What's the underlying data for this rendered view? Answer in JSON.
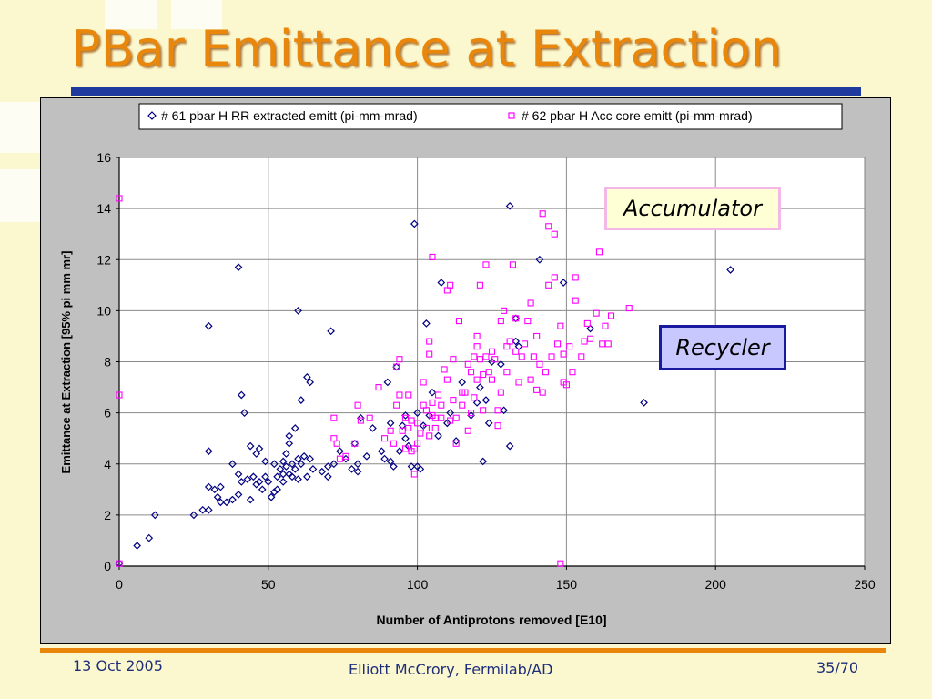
{
  "slide": {
    "title": "PBar Emittance at Extraction",
    "footer_date": "13 Oct 2005",
    "footer_author": "Elliott McCrory, Fermilab/AD",
    "footer_page": "35/70",
    "title_color": "#e8870c",
    "accent_color": "#1f3a9e"
  },
  "callouts": {
    "accumulator": "Accumulator",
    "recycler": "Recycler"
  },
  "chart_data": {
    "type": "scatter",
    "title": "",
    "xlabel": "Number of Antiprotons removed [E10]",
    "ylabel": "Emittance at Extraction [95% pi mm mr]",
    "xlim": [
      0,
      250
    ],
    "ylim": [
      0,
      16
    ],
    "xticks": [
      0,
      50,
      100,
      150,
      200,
      250
    ],
    "yticks": [
      0,
      2,
      4,
      6,
      8,
      10,
      12,
      14,
      16
    ],
    "grid": true,
    "legend_position": "top",
    "series": [
      {
        "name": "# 61 pbar H RR extracted emitt (pi-mm-mrad)",
        "marker": "diamond",
        "color": "#000080",
        "points": [
          [
            0,
            0.1
          ],
          [
            6,
            0.8
          ],
          [
            10,
            1.1
          ],
          [
            12,
            2
          ],
          [
            25,
            2
          ],
          [
            28,
            2.2
          ],
          [
            30,
            2.2
          ],
          [
            30,
            3.1
          ],
          [
            30,
            4.5
          ],
          [
            30,
            9.4
          ],
          [
            32,
            3
          ],
          [
            33,
            2.7
          ],
          [
            34,
            2.5
          ],
          [
            34,
            3.1
          ],
          [
            36,
            2.5
          ],
          [
            38,
            2.6
          ],
          [
            38,
            4
          ],
          [
            40,
            2.8
          ],
          [
            40,
            3.6
          ],
          [
            41,
            3.3
          ],
          [
            41,
            6.7
          ],
          [
            40,
            11.7
          ],
          [
            42,
            6
          ],
          [
            43,
            3.4
          ],
          [
            44,
            2.6
          ],
          [
            44,
            4.7
          ],
          [
            45,
            3.5
          ],
          [
            46,
            3.2
          ],
          [
            46,
            4.4
          ],
          [
            47,
            4.6
          ],
          [
            47,
            3.3
          ],
          [
            48,
            3
          ],
          [
            49,
            3.5
          ],
          [
            49,
            4.1
          ],
          [
            50,
            3.3
          ],
          [
            51,
            2.7
          ],
          [
            52,
            2.9
          ],
          [
            52,
            4
          ],
          [
            53,
            3
          ],
          [
            53,
            3.5
          ],
          [
            54,
            3.8
          ],
          [
            55,
            3.3
          ],
          [
            55,
            3.6
          ],
          [
            55,
            4.1
          ],
          [
            56,
            3.9
          ],
          [
            56,
            4.4
          ],
          [
            57,
            3.6
          ],
          [
            57,
            4.8
          ],
          [
            57,
            5.1
          ],
          [
            58,
            4
          ],
          [
            58,
            3.5
          ],
          [
            59,
            3.8
          ],
          [
            59,
            5.4
          ],
          [
            60,
            3.4
          ],
          [
            60,
            4.2
          ],
          [
            60,
            10
          ],
          [
            61,
            4
          ],
          [
            61,
            6.5
          ],
          [
            62,
            4.3
          ],
          [
            63,
            3.5
          ],
          [
            63,
            7.4
          ],
          [
            64,
            4.2
          ],
          [
            64,
            7.2
          ],
          [
            65,
            3.8
          ],
          [
            68,
            3.7
          ],
          [
            70,
            3.5
          ],
          [
            70,
            3.9
          ],
          [
            71,
            9.2
          ],
          [
            72,
            4
          ],
          [
            74,
            4.5
          ],
          [
            76,
            4.2
          ],
          [
            78,
            3.8
          ],
          [
            79,
            4.8
          ],
          [
            80,
            3.7
          ],
          [
            80,
            4
          ],
          [
            81,
            5.8
          ],
          [
            83,
            4.3
          ],
          [
            85,
            5.4
          ],
          [
            88,
            4.5
          ],
          [
            89,
            4.2
          ],
          [
            90,
            7.2
          ],
          [
            91,
            4.1
          ],
          [
            91,
            5.6
          ],
          [
            92,
            3.9
          ],
          [
            93,
            7.8
          ],
          [
            94,
            4.5
          ],
          [
            95,
            5.5
          ],
          [
            96,
            5
          ],
          [
            96,
            5.9
          ],
          [
            97,
            4.7
          ],
          [
            98,
            3.9
          ],
          [
            99,
            13.4
          ],
          [
            100,
            3.9
          ],
          [
            100,
            6
          ],
          [
            101,
            3.8
          ],
          [
            102,
            5.5
          ],
          [
            103,
            9.5
          ],
          [
            104,
            5.9
          ],
          [
            105,
            6.8
          ],
          [
            107,
            5.1
          ],
          [
            108,
            11.1
          ],
          [
            110,
            5.6
          ],
          [
            111,
            6
          ],
          [
            113,
            4.9
          ],
          [
            115,
            7.2
          ],
          [
            118,
            5.9
          ],
          [
            120,
            6.4
          ],
          [
            121,
            7
          ],
          [
            122,
            4.1
          ],
          [
            123,
            6.5
          ],
          [
            124,
            5.6
          ],
          [
            125,
            8
          ],
          [
            128,
            7.9
          ],
          [
            129,
            6.1
          ],
          [
            131,
            4.7
          ],
          [
            131,
            14.1
          ],
          [
            133,
            8.8
          ],
          [
            133,
            9.7
          ],
          [
            134,
            8.6
          ],
          [
            141,
            12
          ],
          [
            149,
            11.1
          ],
          [
            158,
            9.3
          ],
          [
            176,
            6.4
          ],
          [
            205,
            11.6
          ]
        ]
      },
      {
        "name": "# 62 pbar H Acc core emitt (pi-mm-mrad)",
        "marker": "square",
        "color": "#ff00ff",
        "points": [
          [
            0,
            14.4
          ],
          [
            0,
            6.7
          ],
          [
            0,
            0.1
          ],
          [
            72,
            5.8
          ],
          [
            72,
            5
          ],
          [
            73,
            4.8
          ],
          [
            74,
            4.2
          ],
          [
            76,
            4.3
          ],
          [
            79,
            4.8
          ],
          [
            80,
            6.3
          ],
          [
            81,
            5.7
          ],
          [
            84,
            5.8
          ],
          [
            87,
            7
          ],
          [
            89,
            5
          ],
          [
            91,
            5.3
          ],
          [
            92,
            4.8
          ],
          [
            93,
            6.3
          ],
          [
            93,
            7.8
          ],
          [
            94,
            8.1
          ],
          [
            94,
            6.7
          ],
          [
            95,
            5.3
          ],
          [
            96,
            5.8
          ],
          [
            96,
            4.6
          ],
          [
            97,
            5.4
          ],
          [
            97,
            6.7
          ],
          [
            98,
            4.5
          ],
          [
            98,
            5.7
          ],
          [
            99,
            3.6
          ],
          [
            99,
            4.6
          ],
          [
            100,
            4.8
          ],
          [
            100,
            5.6
          ],
          [
            101,
            5.2
          ],
          [
            102,
            6.3
          ],
          [
            102,
            7.2
          ],
          [
            103,
            5.4
          ],
          [
            103,
            6.1
          ],
          [
            104,
            5.1
          ],
          [
            104,
            8.3
          ],
          [
            104,
            8.8
          ],
          [
            105,
            5.9
          ],
          [
            105,
            6.4
          ],
          [
            105,
            12.1
          ],
          [
            106,
            5.4
          ],
          [
            106,
            5.8
          ],
          [
            107,
            6.7
          ],
          [
            108,
            6.3
          ],
          [
            108,
            5.8
          ],
          [
            109,
            7.7
          ],
          [
            110,
            7.3
          ],
          [
            110,
            10.8
          ],
          [
            111,
            11
          ],
          [
            111,
            5.7
          ],
          [
            112,
            8.1
          ],
          [
            112,
            6.5
          ],
          [
            113,
            5.8
          ],
          [
            113,
            4.8
          ],
          [
            114,
            9.6
          ],
          [
            115,
            6.8
          ],
          [
            115,
            6.3
          ],
          [
            116,
            6.8
          ],
          [
            117,
            7.9
          ],
          [
            117,
            5.3
          ],
          [
            118,
            7.6
          ],
          [
            118,
            6
          ],
          [
            119,
            6.6
          ],
          [
            119,
            8.2
          ],
          [
            120,
            8.6
          ],
          [
            120,
            7.3
          ],
          [
            120,
            9
          ],
          [
            121,
            8.1
          ],
          [
            121,
            11
          ],
          [
            122,
            6.1
          ],
          [
            122,
            7.5
          ],
          [
            123,
            8.2
          ],
          [
            123,
            11.8
          ],
          [
            124,
            7.6
          ],
          [
            125,
            8.4
          ],
          [
            125,
            7.3
          ],
          [
            126,
            8.1
          ],
          [
            127,
            5.5
          ],
          [
            127,
            6.1
          ],
          [
            128,
            9.6
          ],
          [
            128,
            6.8
          ],
          [
            129,
            10
          ],
          [
            130,
            8.6
          ],
          [
            130,
            7.6
          ],
          [
            131,
            8.8
          ],
          [
            132,
            11.8
          ],
          [
            133,
            8.4
          ],
          [
            133,
            9.7
          ],
          [
            134,
            7.2
          ],
          [
            135,
            8.2
          ],
          [
            136,
            8.7
          ],
          [
            137,
            9.6
          ],
          [
            138,
            10.3
          ],
          [
            138,
            7.3
          ],
          [
            139,
            8.2
          ],
          [
            140,
            6.9
          ],
          [
            140,
            9
          ],
          [
            141,
            7.9
          ],
          [
            142,
            6.8
          ],
          [
            142,
            13.8
          ],
          [
            143,
            7.6
          ],
          [
            144,
            11
          ],
          [
            144,
            13.3
          ],
          [
            145,
            8.2
          ],
          [
            146,
            13
          ],
          [
            146,
            11.3
          ],
          [
            147,
            8.7
          ],
          [
            148,
            0.1
          ],
          [
            148,
            9.4
          ],
          [
            149,
            8.3
          ],
          [
            149,
            7.2
          ],
          [
            150,
            7.1
          ],
          [
            151,
            8.6
          ],
          [
            152,
            7.6
          ],
          [
            153,
            10.4
          ],
          [
            153,
            11.3
          ],
          [
            155,
            8.2
          ],
          [
            156,
            8.8
          ],
          [
            157,
            9.5
          ],
          [
            158,
            8.9
          ],
          [
            160,
            9.9
          ],
          [
            161,
            12.3
          ],
          [
            162,
            8.7
          ],
          [
            163,
            9.4
          ],
          [
            164,
            8.7
          ],
          [
            165,
            9.8
          ],
          [
            171,
            10.1
          ]
        ]
      }
    ]
  }
}
